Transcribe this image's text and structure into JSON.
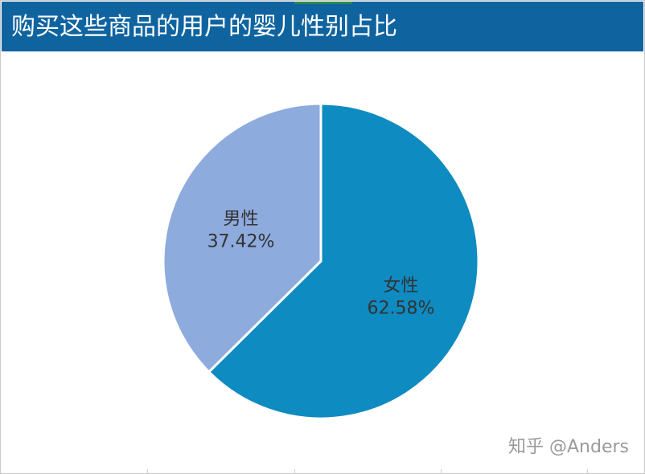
{
  "header": {
    "title": "购买这些商品的用户的婴儿性别占比"
  },
  "chart_data": {
    "type": "pie",
    "title": "购买这些商品的用户的婴儿性别占比",
    "categories": [
      "女性",
      "男性"
    ],
    "values": [
      62.58,
      37.42
    ],
    "value_labels": [
      "62.58%",
      "37.42%"
    ],
    "colors": [
      "#0e8bc1",
      "#8eabdd"
    ],
    "start_angle_deg": 0,
    "direction": "clockwise",
    "legend": "none"
  },
  "watermark": {
    "text": "知乎 @Anders"
  },
  "colors": {
    "title_bar": "#0f64a0",
    "background": "#ffffff"
  }
}
